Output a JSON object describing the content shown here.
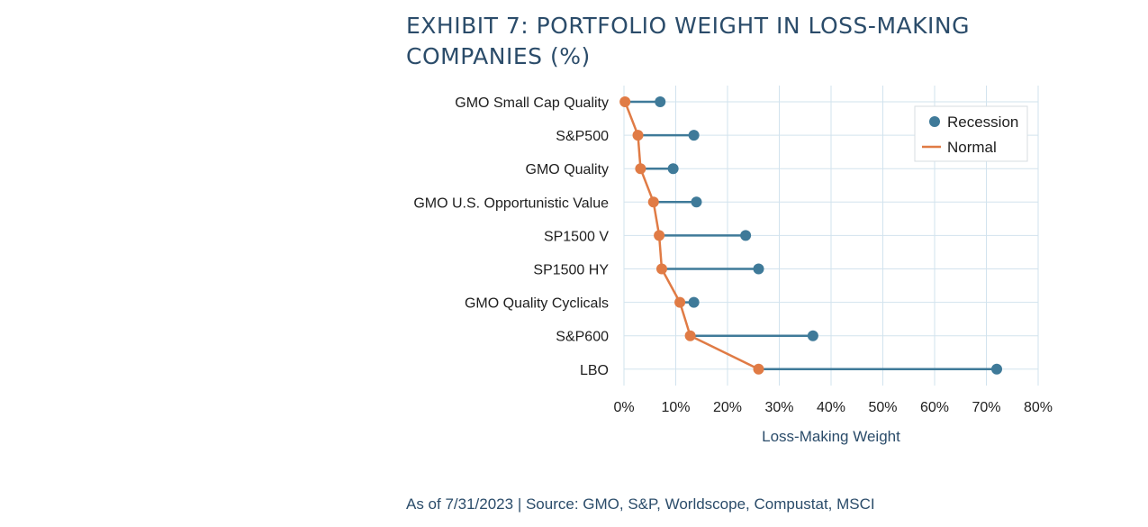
{
  "title": "EXHIBIT 7: PORTFOLIO WEIGHT IN LOSS-MAKING COMPANIES (%)",
  "source": "As of 7/31/2023 | Source: GMO, S&P, Worldscope, Compustat, MSCI",
  "colors": {
    "recession": "#3f7a99",
    "normal": "#e07b45",
    "grid": "#d2e3ee",
    "text": "#2b4c6a"
  },
  "chart_data": {
    "type": "scatter",
    "title": "EXHIBIT 7: PORTFOLIO WEIGHT IN LOSS-MAKING COMPANIES (%)",
    "xlabel": "Loss-Making Weight",
    "ylabel": "",
    "xlim": [
      0,
      80
    ],
    "xticks": [
      0,
      10,
      20,
      30,
      40,
      50,
      60,
      70,
      80
    ],
    "xtick_labels": [
      "0%",
      "10%",
      "20%",
      "30%",
      "40%",
      "50%",
      "60%",
      "70%",
      "80%"
    ],
    "grid": true,
    "legend_position": "top-right",
    "categories": [
      "GMO Small Cap Quality",
      "S&P500",
      "GMO Quality",
      "GMO U.S. Opportunistic Value",
      "SP1500 V",
      "SP1500 HY",
      "GMO Quality Cyclicals",
      "S&P600",
      "LBO"
    ],
    "series": [
      {
        "name": "Recession",
        "marker": "dot",
        "values": [
          7,
          13.5,
          9.5,
          14,
          23.5,
          26,
          13.5,
          36.5,
          72
        ]
      },
      {
        "name": "Normal",
        "marker": "dot-line",
        "values": [
          0.2,
          2.7,
          3.2,
          5.7,
          6.8,
          7.3,
          10.8,
          12.8,
          26
        ]
      }
    ]
  }
}
